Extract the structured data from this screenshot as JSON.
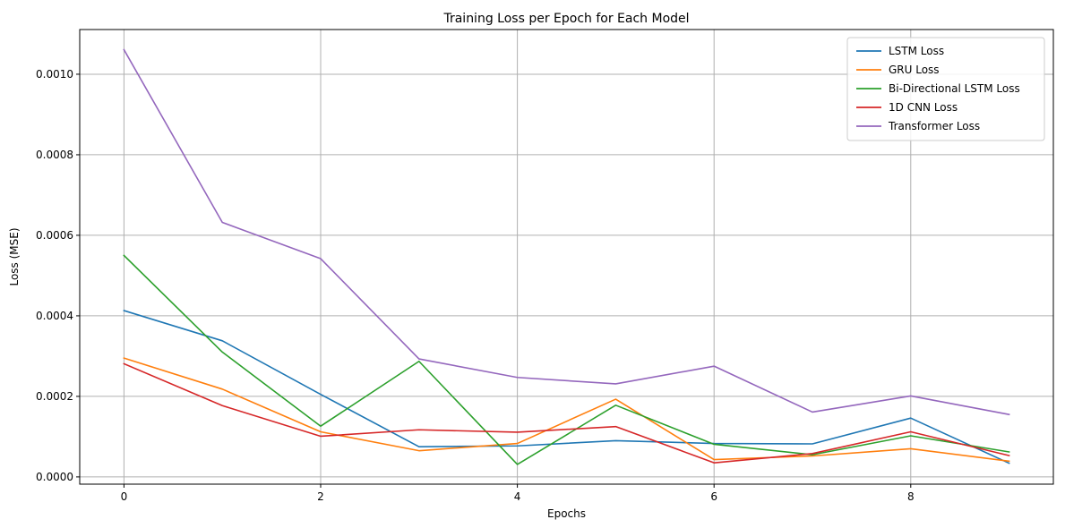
{
  "chart_data": {
    "type": "line",
    "title": "Training Loss per Epoch for Each Model",
    "xlabel": "Epochs",
    "ylabel": "Loss (MSE)",
    "x": [
      0,
      1,
      2,
      3,
      4,
      5,
      6,
      7,
      8,
      9
    ],
    "xlim": [
      -0.45,
      9.45
    ],
    "ylim": [
      -1.8e-05,
      0.001111
    ],
    "xticks": [
      0,
      2,
      4,
      6,
      8
    ],
    "xtick_labels": [
      "0",
      "2",
      "4",
      "6",
      "8"
    ],
    "yticks": [
      0,
      0.0002,
      0.0004,
      0.0006,
      0.0008,
      0.001
    ],
    "ytick_labels": [
      "0.0000",
      "0.0002",
      "0.0004",
      "0.0006",
      "0.0008",
      "0.0010"
    ],
    "grid": true,
    "legend_position": "top-right",
    "series": [
      {
        "name": "LSTM Loss",
        "color": "#1f77b4",
        "values": [
          0.000413,
          0.000338,
          0.000205,
          7.5e-05,
          7.7e-05,
          9e-05,
          8.3e-05,
          8.2e-05,
          0.000146,
          3.4e-05
        ]
      },
      {
        "name": "GRU Loss",
        "color": "#ff7f0e",
        "values": [
          0.000295,
          0.000218,
          0.000112,
          6.5e-05,
          8.3e-05,
          0.000193,
          4.3e-05,
          5.2e-05,
          7e-05,
          3.9e-05
        ]
      },
      {
        "name": "Bi-Directional LSTM Loss",
        "color": "#2ca02c",
        "values": [
          0.00055,
          0.00031,
          0.000126,
          0.000287,
          3.1e-05,
          0.000178,
          8.1e-05,
          5.5e-05,
          0.000102,
          6.2e-05
        ]
      },
      {
        "name": "1D CNN Loss",
        "color": "#d62728",
        "values": [
          0.000281,
          0.000177,
          0.000101,
          0.000117,
          0.000111,
          0.000125,
          3.5e-05,
          5.8e-05,
          0.000112,
          5.3e-05
        ]
      },
      {
        "name": "Transformer Loss",
        "color": "#9467bd",
        "values": [
          0.001061,
          0.000632,
          0.000542,
          0.000293,
          0.000247,
          0.000231,
          0.000275,
          0.000161,
          0.000201,
          0.000155
        ]
      }
    ]
  }
}
